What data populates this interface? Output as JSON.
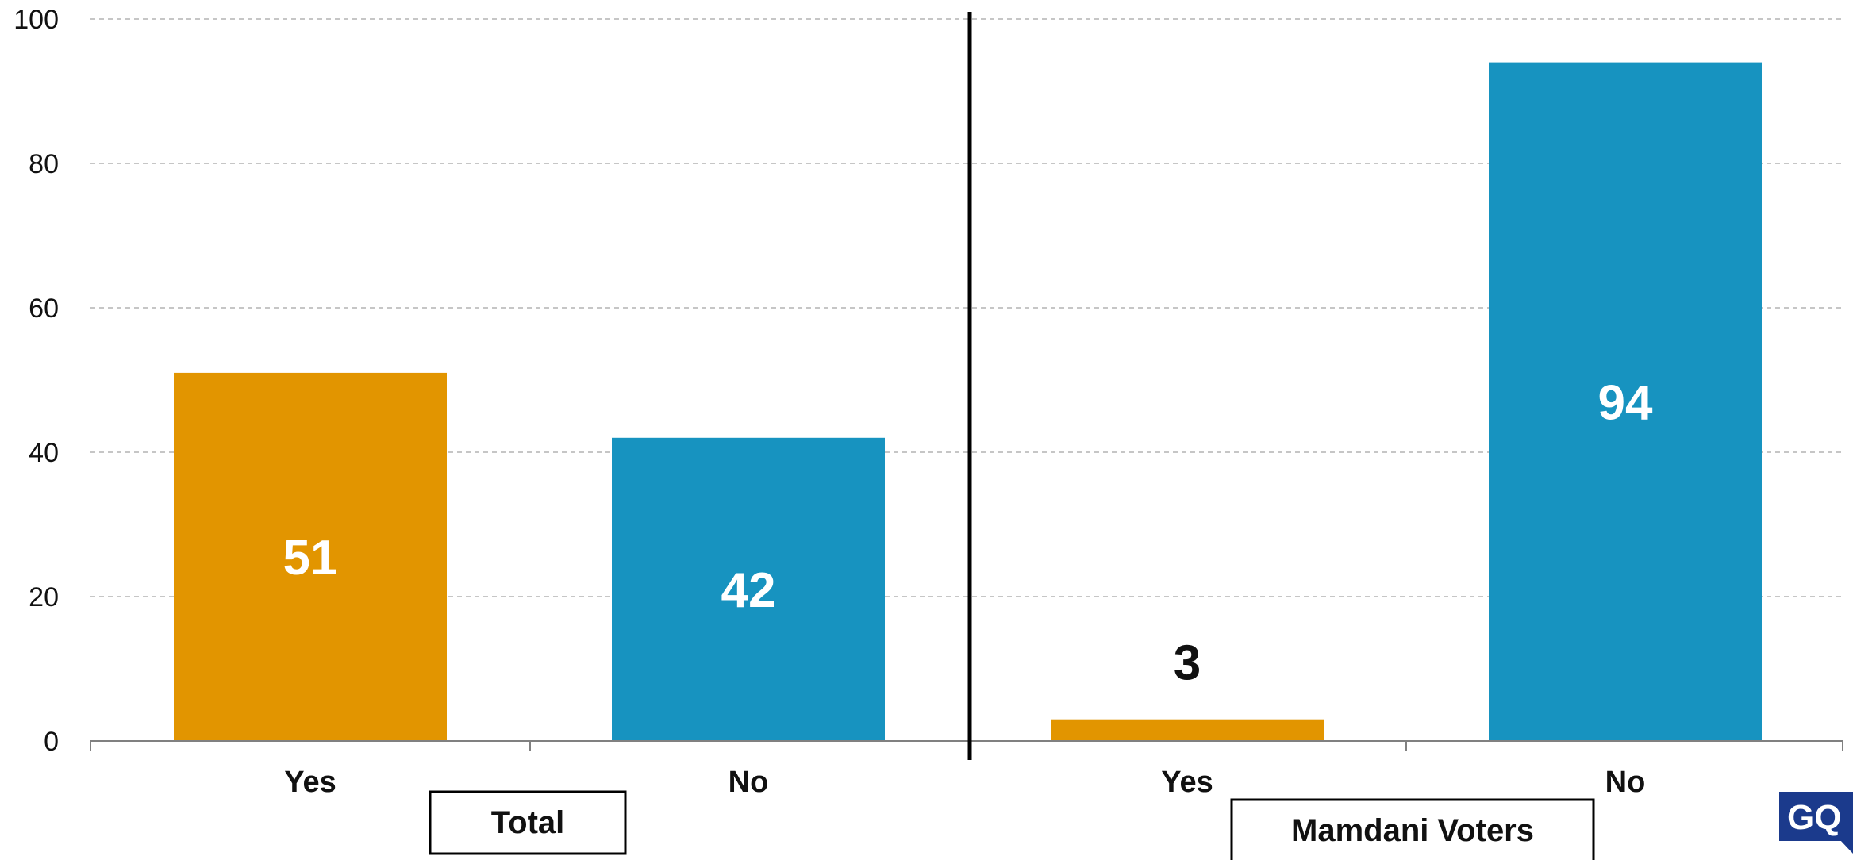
{
  "chart_data": {
    "type": "bar",
    "categories": [
      "Yes",
      "No",
      "Yes",
      "No"
    ],
    "groups": [
      {
        "label": "Total",
        "categories": [
          "Yes",
          "No"
        ],
        "values": [
          51,
          42
        ]
      },
      {
        "label": "Mamdani Voters",
        "categories": [
          "Yes",
          "No"
        ],
        "values": [
          3,
          94
        ]
      }
    ],
    "values": [
      51,
      42,
      3,
      94
    ],
    "value_labels": [
      "51",
      "42",
      "3",
      "94"
    ],
    "colors": {
      "yes": "#E29500",
      "no": "#1793C0"
    },
    "label_colors": {
      "inside": "#ffffff",
      "outside": "#111111"
    },
    "yticks": [
      "0",
      "20",
      "40",
      "60",
      "80",
      "100"
    ],
    "ylim": [
      0,
      100
    ],
    "grid": true,
    "title": "",
    "xlabel": "",
    "ylabel": ""
  },
  "logo": {
    "text": "GQ",
    "color": "#1B3A8C"
  }
}
